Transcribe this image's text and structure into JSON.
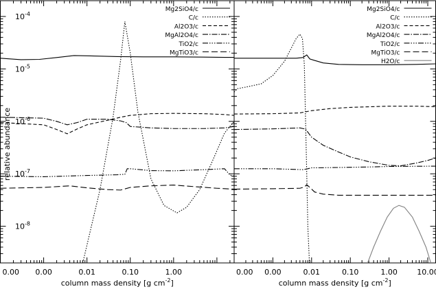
{
  "chart_data": {
    "type": "line",
    "ylabel": "relative abundance",
    "y_scale": "log",
    "ylim": [
      2e-09,
      0.0002
    ],
    "y_ticks": [
      {
        "value": 1e-08,
        "base": "10",
        "exp": "-8"
      },
      {
        "value": 1e-07,
        "base": "10",
        "exp": "-7"
      },
      {
        "value": 1e-06,
        "base": "10",
        "exp": "-6"
      },
      {
        "value": 1e-05,
        "base": "10",
        "exp": "-5"
      },
      {
        "value": 0.0001,
        "base": "10",
        "exp": "-4"
      }
    ],
    "panels": [
      {
        "xlabel": "column mass density [g cm",
        "xlabel_sup": "-2",
        "xlabel_end": "]",
        "x_scale": "log",
        "xlim": [
          0.0001,
          25
        ],
        "x_ticks": [
          {
            "value": 0.0001,
            "label": "0.00"
          },
          {
            "value": 0.001,
            "label": "0.00"
          },
          {
            "value": 0.01,
            "label": "0.01"
          },
          {
            "value": 0.1,
            "label": "0.10"
          },
          {
            "value": 1,
            "label": "1.00"
          }
        ],
        "legend_position": "top-right",
        "series": [
          {
            "name": "Mg2SiO4/c",
            "dash": "",
            "color": "#000000",
            "points": [
              [
                0.0001,
                1.6e-05
              ],
              [
                0.0003,
                1.5e-05
              ],
              [
                0.0008,
                1.52e-05
              ],
              [
                0.002,
                1.65e-05
              ],
              [
                0.005,
                1.8e-05
              ],
              [
                0.01,
                1.78e-05
              ],
              [
                0.05,
                1.72e-05
              ],
              [
                0.2,
                1.7e-05
              ],
              [
                1,
                1.7e-05
              ],
              [
                5,
                1.68e-05
              ],
              [
                15,
                1.66e-05
              ],
              [
                25,
                1.66e-05
              ]
            ]
          },
          {
            "name": "C/c",
            "dash": "1.5,2",
            "color": "#000000",
            "points": [
              [
                0.008,
                2e-09
              ],
              [
                0.02,
                5e-08
              ],
              [
                0.04,
                1.2e-06
              ],
              [
                0.06,
                1.5e-05
              ],
              [
                0.075,
                8e-05
              ],
              [
                0.1,
                2e-05
              ],
              [
                0.15,
                1.5e-06
              ],
              [
                0.3,
                8e-08
              ],
              [
                0.6,
                2.5e-08
              ],
              [
                1.2,
                1.8e-08
              ],
              [
                2,
                2.3e-08
              ],
              [
                4,
                5e-08
              ],
              [
                8,
                1.8e-07
              ],
              [
                15,
                6e-07
              ],
              [
                25,
                1e-06
              ]
            ]
          },
          {
            "name": "Al2O3/c",
            "dash": "5,3",
            "color": "#000000",
            "points": [
              [
                0.0001,
                9.5e-07
              ],
              [
                0.001,
                8.6e-07
              ],
              [
                0.002,
                7e-07
              ],
              [
                0.0035,
                5.8e-07
              ],
              [
                0.006,
                7.2e-07
              ],
              [
                0.01,
                8.6e-07
              ],
              [
                0.03,
                1.05e-06
              ],
              [
                0.06,
                1.2e-06
              ],
              [
                0.1,
                1.3e-06
              ],
              [
                0.3,
                1.4e-06
              ],
              [
                1,
                1.42e-06
              ],
              [
                5,
                1.4e-06
              ],
              [
                15,
                1.35e-06
              ],
              [
                25,
                1.3e-06
              ]
            ]
          },
          {
            "name": "MgAl2O4/c",
            "dash": "8,2,1.5,2",
            "color": "#000000",
            "points": [
              [
                0.0001,
                1.2e-06
              ],
              [
                0.001,
                1.15e-06
              ],
              [
                0.002,
                1e-06
              ],
              [
                0.0035,
                8.6e-07
              ],
              [
                0.006,
                9.5e-07
              ],
              [
                0.01,
                1.1e-06
              ],
              [
                0.03,
                1.1e-06
              ],
              [
                0.06,
                1.02e-06
              ],
              [
                0.08,
                9.5e-07
              ],
              [
                0.1,
                8e-07
              ],
              [
                0.3,
                7.5e-07
              ],
              [
                1,
                7.3e-07
              ],
              [
                5,
                7.3e-07
              ],
              [
                15,
                7.5e-07
              ],
              [
                25,
                8e-07
              ]
            ]
          },
          {
            "name": "TiO2/c",
            "dash": "8,2,1.5,2,1.5,2,1.5,2",
            "color": "#000000",
            "points": [
              [
                0.0001,
                9e-08
              ],
              [
                0.001,
                8.8e-08
              ],
              [
                0.01,
                9.3e-08
              ],
              [
                0.05,
                9.6e-08
              ],
              [
                0.075,
                9.8e-08
              ],
              [
                0.085,
                1.25e-07
              ],
              [
                0.1,
                1.25e-07
              ],
              [
                0.3,
                1.15e-07
              ],
              [
                1,
                1.14e-07
              ],
              [
                5,
                1.2e-07
              ],
              [
                15,
                1.25e-07
              ],
              [
                20,
                9.5e-08
              ],
              [
                25,
                9e-08
              ]
            ]
          },
          {
            "name": "MgTiO3/c",
            "dash": "9,4",
            "color": "#000000",
            "points": [
              [
                0.0001,
                5.3e-08
              ],
              [
                0.001,
                5.5e-08
              ],
              [
                0.004,
                5.9e-08
              ],
              [
                0.01,
                5.4e-08
              ],
              [
                0.03,
                5e-08
              ],
              [
                0.06,
                4.9e-08
              ],
              [
                0.1,
                5.5e-08
              ],
              [
                0.3,
                5.9e-08
              ],
              [
                1,
                6.1e-08
              ],
              [
                3,
                5.7e-08
              ],
              [
                10,
                5.3e-08
              ],
              [
                25,
                5.1e-08
              ]
            ]
          }
        ]
      },
      {
        "xlabel": "column mass density [g cm",
        "xlabel_sup": "-2",
        "xlabel_end": "]",
        "x_scale": "log",
        "xlim": [
          0.0001,
          16
        ],
        "x_ticks": [
          {
            "value": 0.0001,
            "label": "0.00"
          },
          {
            "value": 0.001,
            "label": "0.00"
          },
          {
            "value": 0.01,
            "label": "0.01"
          },
          {
            "value": 0.1,
            "label": "0.10"
          },
          {
            "value": 1,
            "label": "1.00"
          },
          {
            "value": 10,
            "label": "10.00"
          }
        ],
        "legend_position": "top-right",
        "series": [
          {
            "name": "Mg2SiO4/c",
            "dash": "",
            "color": "#000000",
            "points": [
              [
                0.0001,
                1.6e-05
              ],
              [
                0.001,
                1.6e-05
              ],
              [
                0.004,
                1.6e-05
              ],
              [
                0.006,
                1.65e-05
              ],
              [
                0.0075,
                1.85e-05
              ],
              [
                0.009,
                1.55e-05
              ],
              [
                0.012,
                1.45e-05
              ],
              [
                0.02,
                1.3e-05
              ],
              [
                0.05,
                1.22e-05
              ],
              [
                0.2,
                1.2e-05
              ],
              [
                1,
                1.2e-05
              ],
              [
                5,
                1.22e-05
              ],
              [
                16,
                1.25e-05
              ]
            ]
          },
          {
            "name": "C/c",
            "dash": "1.5,2",
            "color": "#000000",
            "points": [
              [
                0.0001,
                3.6e-06
              ],
              [
                0.00012,
                4.2e-06
              ],
              [
                0.0002,
                4.5e-06
              ],
              [
                0.0005,
                5.2e-06
              ],
              [
                0.001,
                7.5e-06
              ],
              [
                0.002,
                1.4e-05
              ],
              [
                0.003,
                2.5e-05
              ],
              [
                0.004,
                3.8e-05
              ],
              [
                0.005,
                4.6e-05
              ],
              [
                0.0058,
                3.8e-05
              ],
              [
                0.0065,
                1.2e-05
              ],
              [
                0.007,
                1e-06
              ],
              [
                0.0075,
                1e-07
              ],
              [
                0.008,
                1e-08
              ],
              [
                0.0088,
                2e-09
              ]
            ]
          },
          {
            "name": "Al2O3/c",
            "dash": "5,3",
            "color": "#000000",
            "points": [
              [
                0.0001,
                1.38e-06
              ],
              [
                0.001,
                1.4e-06
              ],
              [
                0.005,
                1.45e-06
              ],
              [
                0.01,
                1.6e-06
              ],
              [
                0.03,
                1.75e-06
              ],
              [
                0.1,
                1.85e-06
              ],
              [
                1,
                1.95e-06
              ],
              [
                5,
                1.95e-06
              ],
              [
                16,
                1.9e-06
              ]
            ]
          },
          {
            "name": "MgAl2O4/c",
            "dash": "8,2,1.5,2",
            "color": "#000000",
            "points": [
              [
                0.0001,
                7e-07
              ],
              [
                0.001,
                7.2e-07
              ],
              [
                0.005,
                7.5e-07
              ],
              [
                0.007,
                7.1e-07
              ],
              [
                0.01,
                5e-07
              ],
              [
                0.02,
                3.5e-07
              ],
              [
                0.05,
                2.6e-07
              ],
              [
                0.1,
                2.1e-07
              ],
              [
                0.3,
                1.7e-07
              ],
              [
                1,
                1.45e-07
              ],
              [
                2,
                1.42e-07
              ],
              [
                5,
                1.6e-07
              ],
              [
                10,
                1.8e-07
              ],
              [
                16,
                2e-07
              ]
            ]
          },
          {
            "name": "TiO2/c",
            "dash": "8,2,1.5,2,1.5,2,1.5,2",
            "color": "#000000",
            "points": [
              [
                0.0001,
                1.25e-07
              ],
              [
                0.001,
                1.25e-07
              ],
              [
                0.006,
                1.2e-07
              ],
              [
                0.008,
                1.25e-07
              ],
              [
                0.01,
                1.3e-07
              ],
              [
                0.05,
                1.32e-07
              ],
              [
                0.3,
                1.35e-07
              ],
              [
                1,
                1.38e-07
              ],
              [
                16,
                1.4e-07
              ]
            ]
          },
          {
            "name": "MgTiO3/c",
            "dash": "9,4",
            "color": "#000000",
            "points": [
              [
                0.0001,
                5.1e-08
              ],
              [
                0.001,
                5.2e-08
              ],
              [
                0.005,
                5.3e-08
              ],
              [
                0.0065,
                5.6e-08
              ],
              [
                0.0075,
                6.2e-08
              ],
              [
                0.009,
                5.5e-08
              ],
              [
                0.012,
                4.5e-08
              ],
              [
                0.02,
                4.1e-08
              ],
              [
                0.05,
                3.9e-08
              ],
              [
                0.3,
                3.9e-08
              ],
              [
                2,
                3.9e-08
              ],
              [
                16,
                3.9e-08
              ]
            ]
          },
          {
            "name": "H2O/c",
            "dash": "",
            "color": "#808080",
            "points": [
              [
                0.28,
                2e-09
              ],
              [
                0.4,
                4e-09
              ],
              [
                0.6,
                8e-09
              ],
              [
                0.9,
                1.5e-08
              ],
              [
                1.3,
                2.2e-08
              ],
              [
                1.8,
                2.5e-08
              ],
              [
                2.5,
                2.3e-08
              ],
              [
                4,
                1.5e-08
              ],
              [
                6,
                8e-09
              ],
              [
                9,
                4e-09
              ],
              [
                12,
                2e-09
              ]
            ]
          }
        ]
      }
    ]
  }
}
